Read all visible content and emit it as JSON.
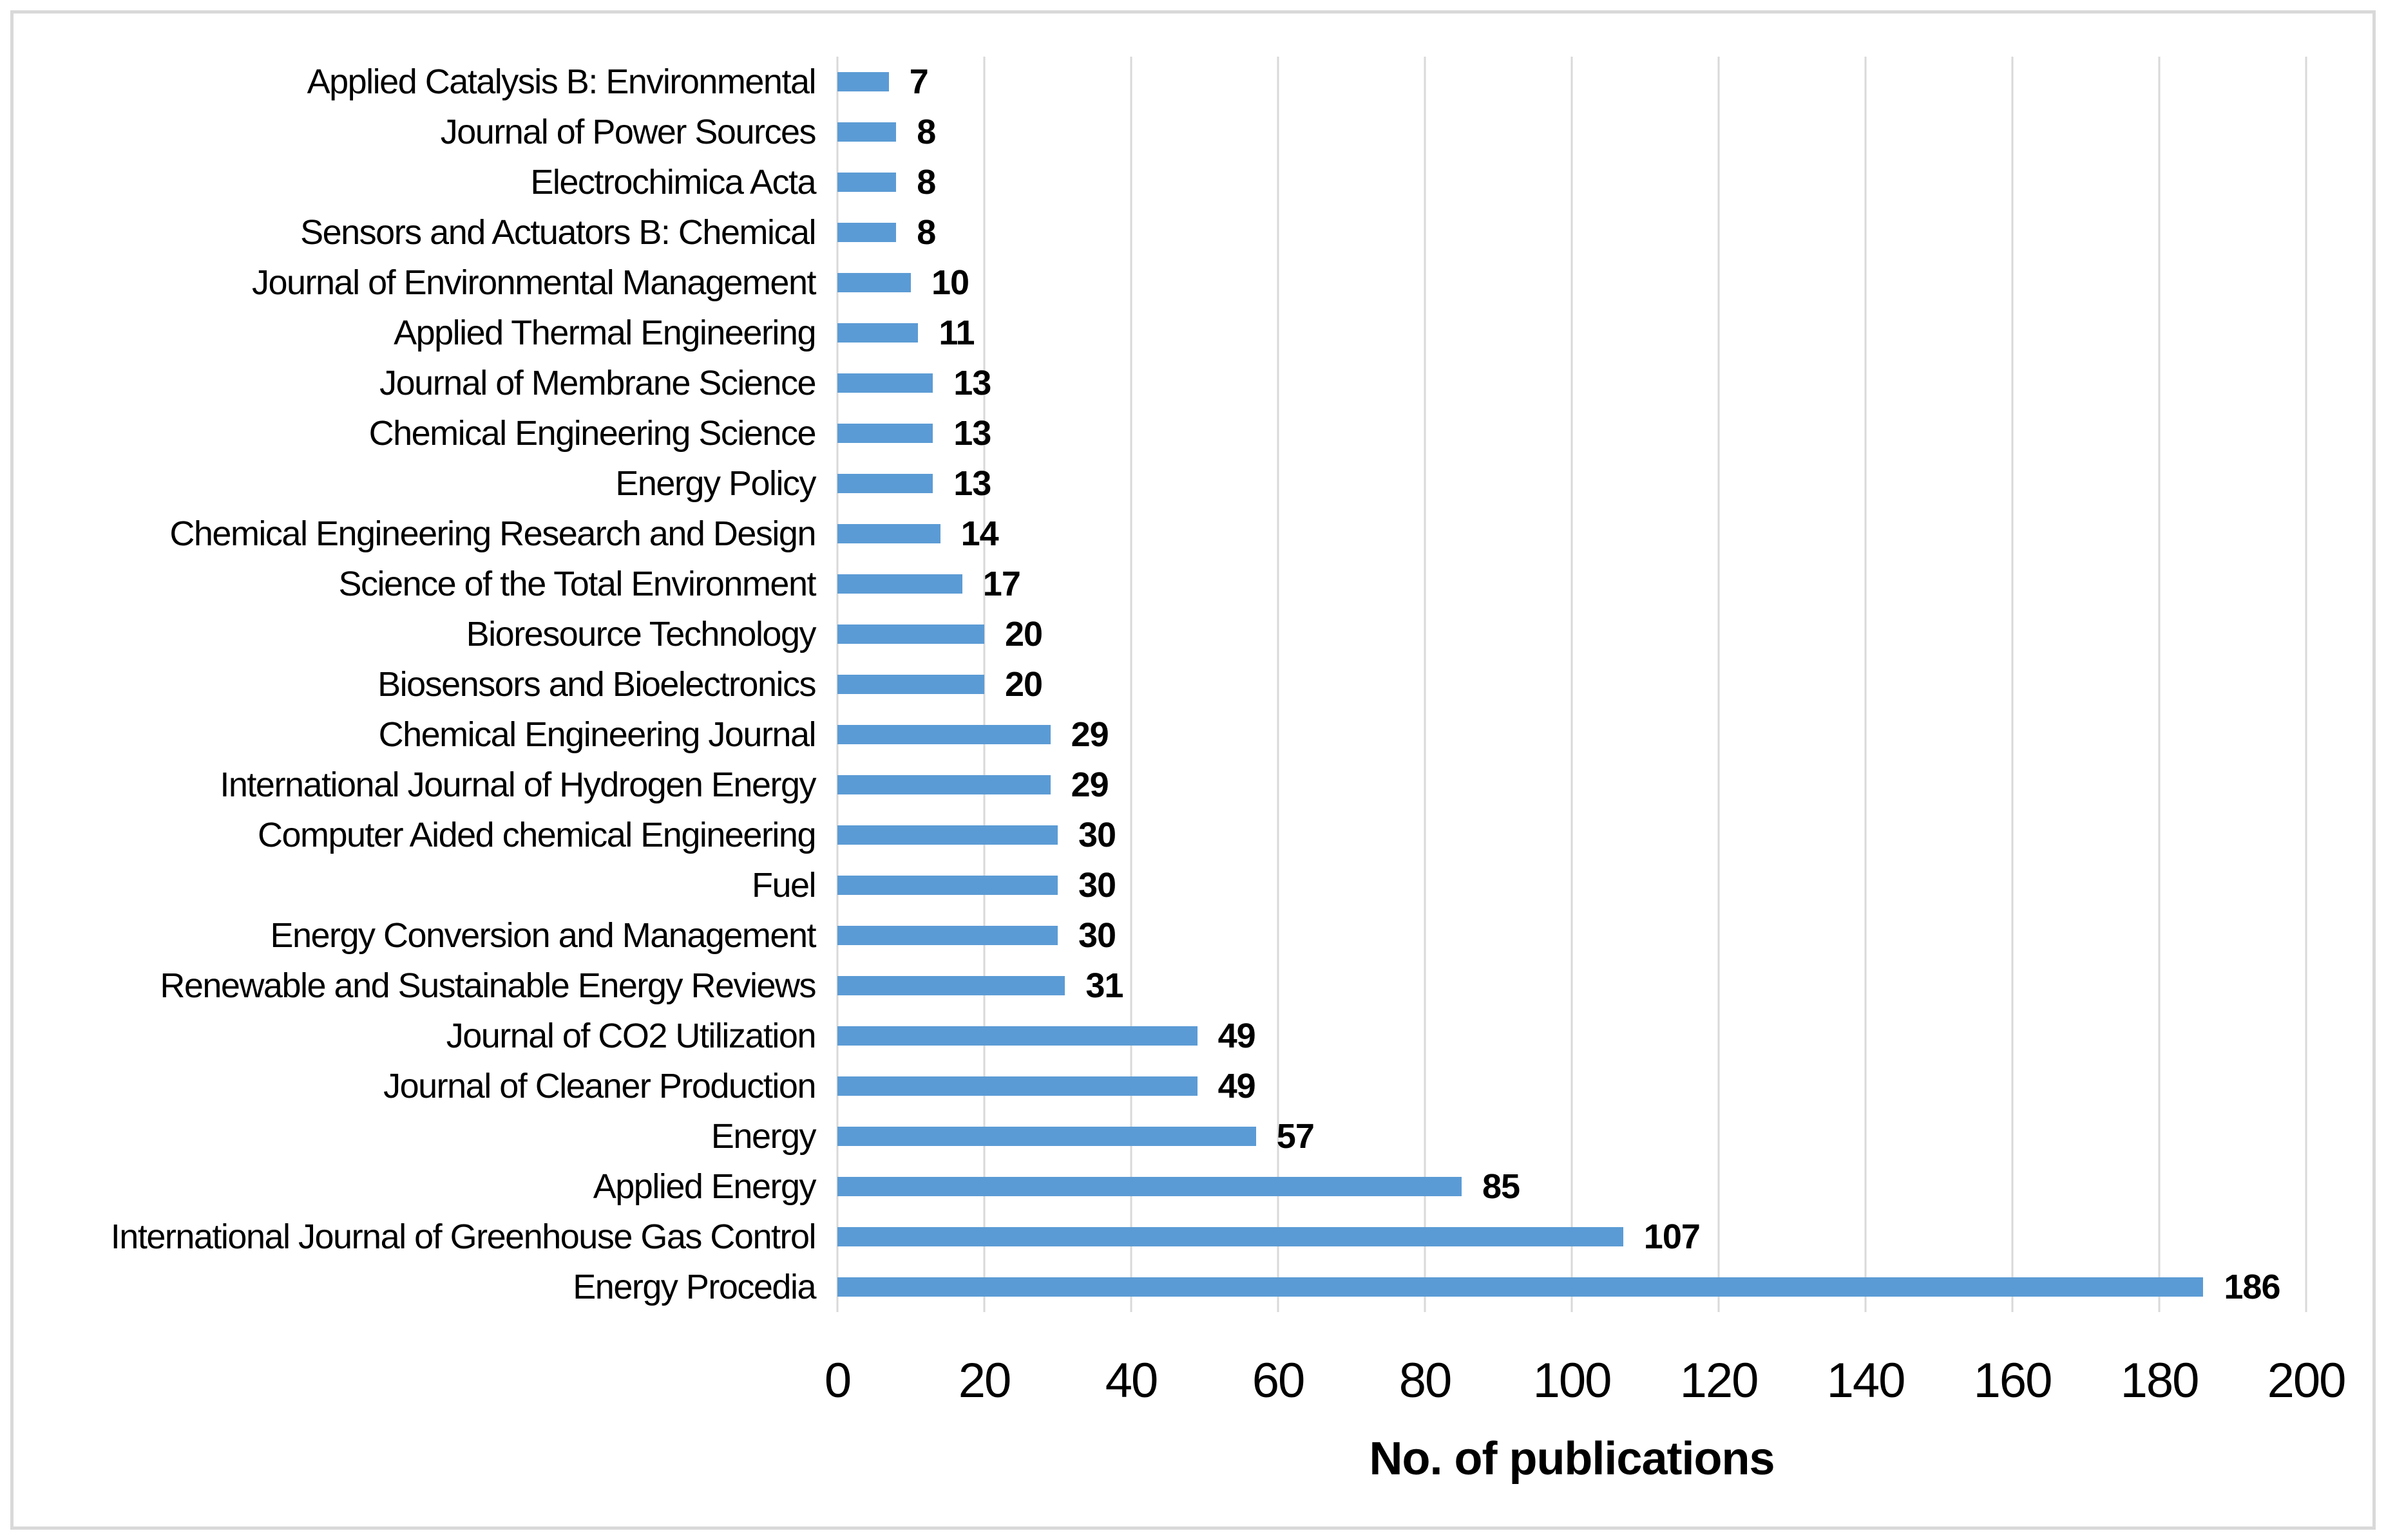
{
  "figure": {
    "background_color": "#ffffff",
    "border_color": "#d9d9d9"
  },
  "chart_data": {
    "type": "bar",
    "orientation": "horizontal",
    "title": "",
    "xlabel": "No. of publications",
    "ylabel": "",
    "xlim": [
      0,
      200
    ],
    "xticks": [
      0,
      20,
      40,
      60,
      80,
      100,
      120,
      140,
      160,
      180,
      200
    ],
    "grid": true,
    "legend": false,
    "data_labels": true,
    "bar_color": "#5b9bd5",
    "gridline_color": "#d9d9d9",
    "label_color": "#000000",
    "categories": [
      "Applied Catalysis B: Environmental",
      "Journal of Power Sources",
      "Electrochimica Acta",
      "Sensors and Actuators B: Chemical",
      "Journal of Environmental Management",
      "Applied Thermal Engineering",
      "Journal of Membrane Science",
      "Chemical Engineering Science",
      "Energy Policy",
      "Chemical Engineering Research and Design",
      "Science of the Total Environment",
      "Bioresource Technology",
      "Biosensors and Bioelectronics",
      "Chemical Engineering Journal",
      "International Journal of Hydrogen Energy",
      "Computer Aided chemical Engineering",
      "Fuel",
      "Energy Conversion and Management",
      "Renewable and Sustainable Energy Reviews",
      "Journal of CO2 Utilization",
      "Journal of Cleaner Production",
      "Energy",
      "Applied Energy",
      "International Journal of Greenhouse Gas Control",
      "Energy Procedia"
    ],
    "values": [
      7,
      8,
      8,
      8,
      10,
      11,
      13,
      13,
      13,
      14,
      17,
      20,
      20,
      29,
      29,
      30,
      30,
      30,
      31,
      49,
      49,
      57,
      85,
      107,
      186
    ]
  }
}
